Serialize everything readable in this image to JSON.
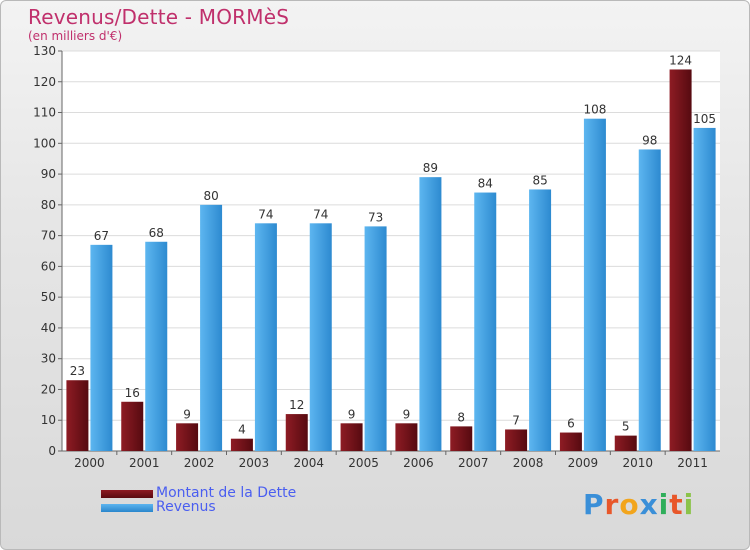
{
  "title": "Revenus/Dette - MORMèS",
  "subtitle": "(en milliers d'€)",
  "colors": {
    "dette": "#7a0e17",
    "revenus": "#3d9ee0"
  },
  "logo": "Proxiti",
  "chart_data": {
    "type": "bar",
    "categories": [
      "2000",
      "2001",
      "2002",
      "2003",
      "2004",
      "2005",
      "2006",
      "2007",
      "2008",
      "2009",
      "2010",
      "2011"
    ],
    "series": [
      {
        "name": "Montant de la Dette",
        "values": [
          23,
          16,
          9,
          4,
          12,
          9,
          9,
          8,
          7,
          6,
          5,
          124
        ]
      },
      {
        "name": "Revenus",
        "values": [
          67,
          68,
          80,
          74,
          74,
          73,
          89,
          84,
          85,
          108,
          98,
          105
        ]
      }
    ],
    "ylim": [
      0,
      130
    ],
    "yticks": [
      0,
      10,
      20,
      30,
      40,
      50,
      60,
      70,
      80,
      90,
      100,
      110,
      120,
      130
    ],
    "grid": true,
    "legend": "bottom-left"
  }
}
